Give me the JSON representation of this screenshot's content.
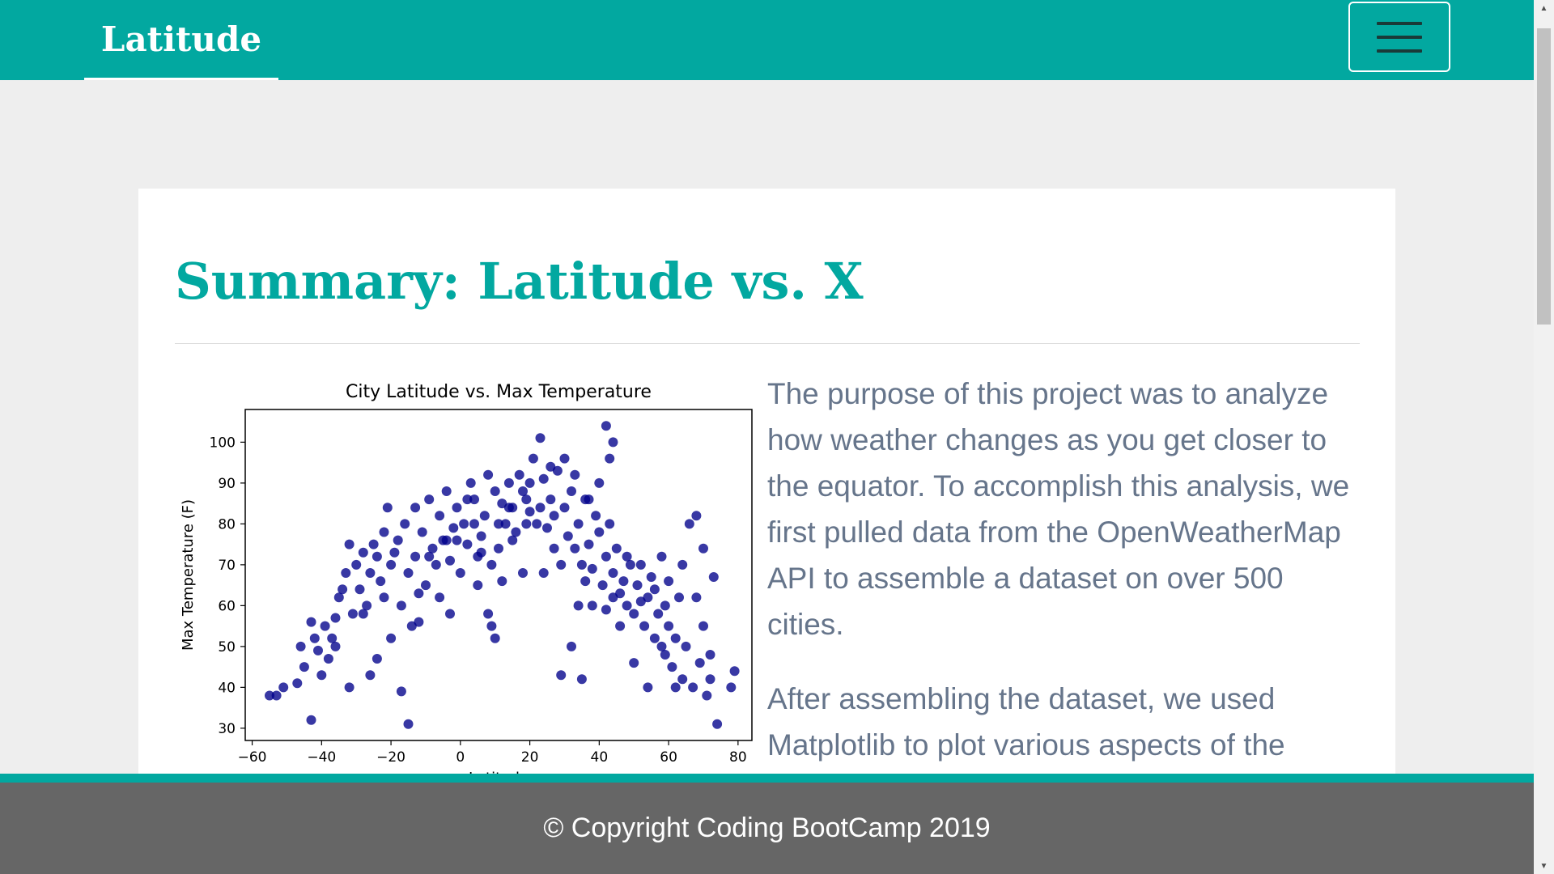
{
  "navbar": {
    "brand": "Latitude",
    "menu_icon": "hamburger-icon"
  },
  "main": {
    "title": "Summary: Latitude vs. X",
    "paragraphs": [
      "The purpose of this project was to analyze how weather changes as you get closer to the equator. To accomplish this analysis, we first pulled data from the OpenWeatherMap API to assemble a dataset on over 500 cities.",
      "After assembling the dataset, we used Matplotlib to plot various aspects of the"
    ]
  },
  "footer": {
    "copyright": "© Copyright Coding BootCamp 2019"
  },
  "colors": {
    "accent": "#02a8a0",
    "text_muted": "#66758b",
    "footer_bg": "#666666",
    "page_bg": "#eeeeee",
    "point_color": "#00008b"
  },
  "chart_data": {
    "type": "scatter",
    "title": "City Latitude vs. Max Temperature",
    "xlabel": "Latitude",
    "ylabel": "Max Temperature (F)",
    "xlim": [
      -62,
      84
    ],
    "ylim": [
      27,
      108
    ],
    "xticks": [
      "−60",
      "−40",
      "−20",
      "0",
      "20",
      "40",
      "60",
      "80"
    ],
    "xtick_values": [
      -60,
      -40,
      -20,
      0,
      20,
      40,
      60,
      80
    ],
    "yticks": [
      "30",
      "40",
      "50",
      "60",
      "70",
      "80",
      "90",
      "100"
    ],
    "ytick_values": [
      30,
      40,
      50,
      60,
      70,
      80,
      90,
      100
    ],
    "grid": false,
    "points": [
      [
        -55,
        38
      ],
      [
        -53,
        38
      ],
      [
        -51,
        40
      ],
      [
        -47,
        41
      ],
      [
        -46,
        50
      ],
      [
        -45,
        45
      ],
      [
        -43,
        56
      ],
      [
        -42,
        52
      ],
      [
        -41,
        49
      ],
      [
        -40,
        43
      ],
      [
        -39,
        55
      ],
      [
        -38,
        47
      ],
      [
        -37,
        52
      ],
      [
        -36,
        57
      ],
      [
        -35,
        62
      ],
      [
        -34,
        64
      ],
      [
        -33,
        68
      ],
      [
        -32,
        75
      ],
      [
        -31,
        58
      ],
      [
        -30,
        70
      ],
      [
        -29,
        64
      ],
      [
        -28,
        73
      ],
      [
        -27,
        60
      ],
      [
        -26,
        68
      ],
      [
        -25,
        75
      ],
      [
        -24,
        72
      ],
      [
        -23,
        66
      ],
      [
        -22,
        78
      ],
      [
        -21,
        84
      ],
      [
        -20,
        70
      ],
      [
        -19,
        73
      ],
      [
        -18,
        76
      ],
      [
        -17,
        60
      ],
      [
        -16,
        80
      ],
      [
        -15,
        68
      ],
      [
        -14,
        55
      ],
      [
        -13,
        72
      ],
      [
        -12,
        63
      ],
      [
        -11,
        78
      ],
      [
        -10,
        65
      ],
      [
        -9,
        86
      ],
      [
        -8,
        74
      ],
      [
        -7,
        70
      ],
      [
        -6,
        82
      ],
      [
        -5,
        76
      ],
      [
        -4,
        88
      ],
      [
        -3,
        71
      ],
      [
        -2,
        79
      ],
      [
        -1,
        84
      ],
      [
        0,
        68
      ],
      [
        1,
        80
      ],
      [
        2,
        75
      ],
      [
        3,
        90
      ],
      [
        4,
        86
      ],
      [
        5,
        72
      ],
      [
        6,
        77
      ],
      [
        7,
        82
      ],
      [
        8,
        92
      ],
      [
        9,
        70
      ],
      [
        10,
        88
      ],
      [
        11,
        74
      ],
      [
        12,
        85
      ],
      [
        13,
        80
      ],
      [
        14,
        90
      ],
      [
        15,
        84
      ],
      [
        16,
        78
      ],
      [
        17,
        92
      ],
      [
        18,
        88
      ],
      [
        19,
        86
      ],
      [
        20,
        83
      ],
      [
        21,
        96
      ],
      [
        22,
        80
      ],
      [
        23,
        84
      ],
      [
        24,
        91
      ],
      [
        25,
        79
      ],
      [
        26,
        86
      ],
      [
        27,
        82
      ],
      [
        28,
        93
      ],
      [
        29,
        70
      ],
      [
        30,
        84
      ],
      [
        31,
        77
      ],
      [
        32,
        88
      ],
      [
        33,
        74
      ],
      [
        34,
        80
      ],
      [
        35,
        70
      ],
      [
        36,
        86
      ],
      [
        37,
        75
      ],
      [
        38,
        69
      ],
      [
        39,
        82
      ],
      [
        40,
        78
      ],
      [
        41,
        65
      ],
      [
        42,
        72
      ],
      [
        43,
        80
      ],
      [
        44,
        68
      ],
      [
        45,
        74
      ],
      [
        46,
        63
      ],
      [
        47,
        66
      ],
      [
        48,
        60
      ],
      [
        49,
        70
      ],
      [
        50,
        58
      ],
      [
        51,
        65
      ],
      [
        52,
        61
      ],
      [
        53,
        55
      ],
      [
        54,
        62
      ],
      [
        55,
        67
      ],
      [
        56,
        52
      ],
      [
        57,
        58
      ],
      [
        58,
        72
      ],
      [
        59,
        48
      ],
      [
        60,
        55
      ],
      [
        61,
        45
      ],
      [
        62,
        52
      ],
      [
        63,
        62
      ],
      [
        64,
        42
      ],
      [
        65,
        50
      ],
      [
        66,
        80
      ],
      [
        67,
        40
      ],
      [
        68,
        82
      ],
      [
        69,
        46
      ],
      [
        70,
        55
      ],
      [
        71,
        38
      ],
      [
        72,
        48
      ],
      [
        73,
        67
      ],
      [
        74,
        31
      ],
      [
        78,
        40
      ],
      [
        79,
        44
      ],
      [
        -43,
        32
      ],
      [
        -32,
        40
      ],
      [
        -26,
        43
      ],
      [
        -17,
        39
      ],
      [
        -15,
        31
      ],
      [
        -3,
        58
      ],
      [
        8,
        58
      ],
      [
        9,
        55
      ],
      [
        10,
        52
      ],
      [
        18,
        68
      ],
      [
        29,
        43
      ],
      [
        32,
        50
      ],
      [
        35,
        42
      ],
      [
        42,
        104
      ],
      [
        43,
        96
      ],
      [
        44,
        100
      ],
      [
        50,
        46
      ],
      [
        54,
        40
      ],
      [
        46,
        55
      ],
      [
        59,
        60
      ],
      [
        38,
        60
      ],
      [
        -20,
        52
      ],
      [
        -6,
        62
      ],
      [
        2,
        86
      ],
      [
        5,
        65
      ],
      [
        14,
        84
      ],
      [
        20,
        90
      ],
      [
        23,
        101
      ],
      [
        26,
        94
      ],
      [
        30,
        96
      ],
      [
        33,
        92
      ],
      [
        37,
        86
      ],
      [
        40,
        90
      ],
      [
        -36,
        50
      ],
      [
        -28,
        58
      ],
      [
        -24,
        47
      ],
      [
        -12,
        56
      ],
      [
        -9,
        72
      ],
      [
        -1,
        76
      ],
      [
        6,
        73
      ],
      [
        12,
        66
      ],
      [
        15,
        76
      ],
      [
        24,
        68
      ],
      [
        36,
        66
      ],
      [
        42,
        59
      ],
      [
        52,
        70
      ],
      [
        56,
        64
      ],
      [
        58,
        50
      ],
      [
        62,
        40
      ],
      [
        68,
        62
      ],
      [
        70,
        74
      ],
      [
        72,
        42
      ],
      [
        64,
        70
      ],
      [
        60,
        66
      ],
      [
        48,
        72
      ],
      [
        44,
        62
      ],
      [
        34,
        60
      ],
      [
        27,
        74
      ],
      [
        19,
        80
      ],
      [
        11,
        80
      ],
      [
        4,
        80
      ],
      [
        -4,
        76
      ],
      [
        -13,
        84
      ],
      [
        -22,
        62
      ]
    ]
  }
}
